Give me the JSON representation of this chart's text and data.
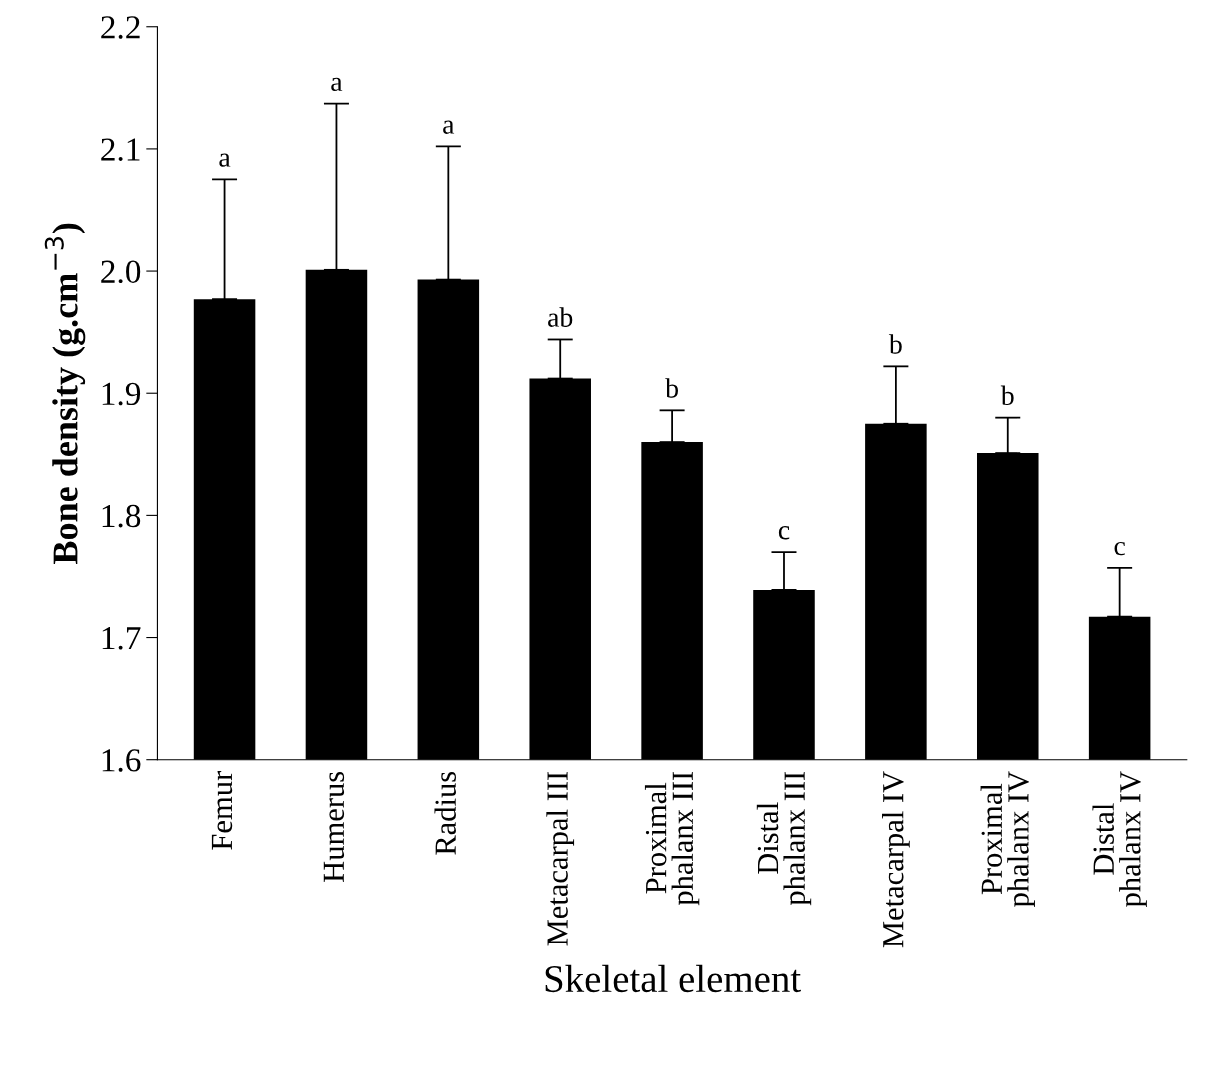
{
  "chart_data": {
    "type": "bar",
    "categories": [
      "Femur",
      "Humerus",
      "Radius",
      "Metacarpal III",
      "Proximal\nphalanx III",
      "Distal\nphalanx III",
      "Metacarpal IV",
      "Proximal\nphalanx IV",
      "Distal\nphalanx IV"
    ],
    "values": [
      1.977,
      2.001,
      1.993,
      1.912,
      1.86,
      1.739,
      1.875,
      1.851,
      1.717
    ],
    "errors": [
      [
        1.977,
        2.075
      ],
      [
        2.001,
        2.137
      ],
      [
        1.993,
        2.102
      ],
      [
        1.912,
        1.944
      ],
      [
        1.86,
        1.886
      ],
      [
        1.739,
        1.77
      ],
      [
        1.875,
        1.922
      ],
      [
        1.851,
        1.88
      ],
      [
        1.717,
        1.757
      ]
    ],
    "color": "#000000",
    "xlabel": "Skeletal element",
    "ylabel": "Bone density (g.cm$^{−3}$)",
    "ylim": [
      1.6,
      2.2
    ],
    "yticks": [
      {
        "value": 1.6,
        "label": "1.6"
      },
      {
        "value": 1.7,
        "label": "1.7"
      },
      {
        "value": 1.8,
        "label": "1.8"
      },
      {
        "value": 1.9,
        "label": "1.9"
      },
      {
        "value": 2.0,
        "label": "2.0"
      },
      {
        "value": 2.1,
        "label": "2.1"
      },
      {
        "value": 2.2,
        "label": "2.2"
      }
    ],
    "grid": false,
    "legend": false,
    "annotations": [
      {
        "text": "a",
        "x": "Femur",
        "y": 2.075
      },
      {
        "text": "a",
        "x": "Humerus",
        "y": 2.137
      },
      {
        "text": "a",
        "x": "Radius",
        "y": 2.102
      },
      {
        "text": "ab",
        "x": "Metacarpal III",
        "y": 1.944
      },
      {
        "text": "b",
        "x": "Proximal\nphalanx III",
        "y": 1.886
      },
      {
        "text": "c",
        "x": "Distal\nphalanx III",
        "y": 1.77
      },
      {
        "text": "b",
        "x": "Metacarpal IV",
        "y": 1.922
      },
      {
        "text": "b",
        "x": "Proximal\nphalanx IV",
        "y": 1.88
      },
      {
        "text": "c",
        "x": "Distal\nphalanx IV",
        "y": 1.757
      }
    ]
  }
}
